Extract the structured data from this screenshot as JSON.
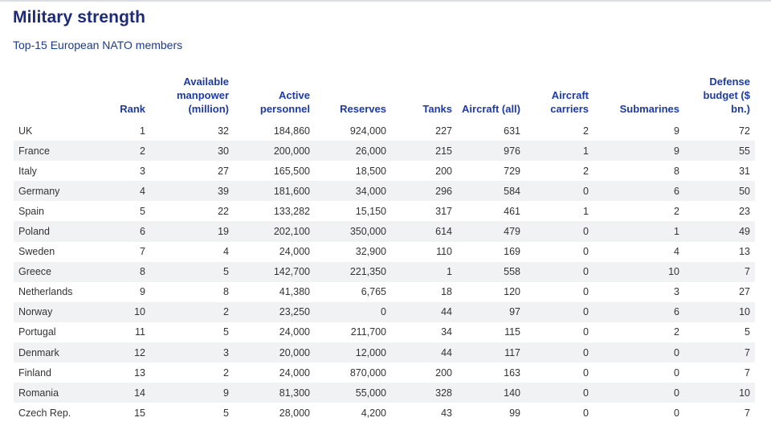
{
  "title": "Military strength",
  "subtitle": "Top-15 European NATO members",
  "colors": {
    "title": "#1c2a7a",
    "header_text": "#1c3aa8",
    "row_stripe": "#f1f2f4"
  },
  "chart_data": {
    "type": "table",
    "title": "Military strength",
    "subtitle": "Top-15 European NATO members",
    "columns": [
      "",
      "Rank",
      "Available manpower (million)",
      "Active personnel",
      "Reserves",
      "Tanks",
      "Aircraft (all)",
      "Aircraft carriers",
      "Submarines",
      "Defense budget ($ bn.)"
    ],
    "rows": [
      [
        "UK",
        "1",
        "32",
        "184,860",
        "924,000",
        "227",
        "631",
        "2",
        "9",
        "72"
      ],
      [
        "France",
        "2",
        "30",
        "200,000",
        "26,000",
        "215",
        "976",
        "1",
        "9",
        "55"
      ],
      [
        "Italy",
        "3",
        "27",
        "165,500",
        "18,500",
        "200",
        "729",
        "2",
        "8",
        "31"
      ],
      [
        "Germany",
        "4",
        "39",
        "181,600",
        "34,000",
        "296",
        "584",
        "0",
        "6",
        "50"
      ],
      [
        "Spain",
        "5",
        "22",
        "133,282",
        "15,150",
        "317",
        "461",
        "1",
        "2",
        "23"
      ],
      [
        "Poland",
        "6",
        "19",
        "202,100",
        "350,000",
        "614",
        "479",
        "0",
        "1",
        "49"
      ],
      [
        "Sweden",
        "7",
        "4",
        "24,000",
        "32,900",
        "110",
        "169",
        "0",
        "4",
        "13"
      ],
      [
        "Greece",
        "8",
        "5",
        "142,700",
        "221,350",
        "1",
        "558",
        "0",
        "10",
        "7"
      ],
      [
        "Netherlands",
        "9",
        "8",
        "41,380",
        "6,765",
        "18",
        "120",
        "0",
        "3",
        "27"
      ],
      [
        "Norway",
        "10",
        "2",
        "23,250",
        "0",
        "44",
        "97",
        "0",
        "6",
        "10"
      ],
      [
        "Portugal",
        "11",
        "5",
        "24,000",
        "211,700",
        "34",
        "115",
        "0",
        "2",
        "5"
      ],
      [
        "Denmark",
        "12",
        "3",
        "20,000",
        "12,000",
        "44",
        "117",
        "0",
        "0",
        "7"
      ],
      [
        "Finland",
        "13",
        "2",
        "24,000",
        "870,000",
        "200",
        "163",
        "0",
        "0",
        "7"
      ],
      [
        "Romania",
        "14",
        "9",
        "81,300",
        "55,000",
        "328",
        "140",
        "0",
        "0",
        "10"
      ],
      [
        "Czech Rep.",
        "15",
        "5",
        "28,000",
        "4,200",
        "43",
        "99",
        "0",
        "0",
        "7"
      ]
    ]
  }
}
